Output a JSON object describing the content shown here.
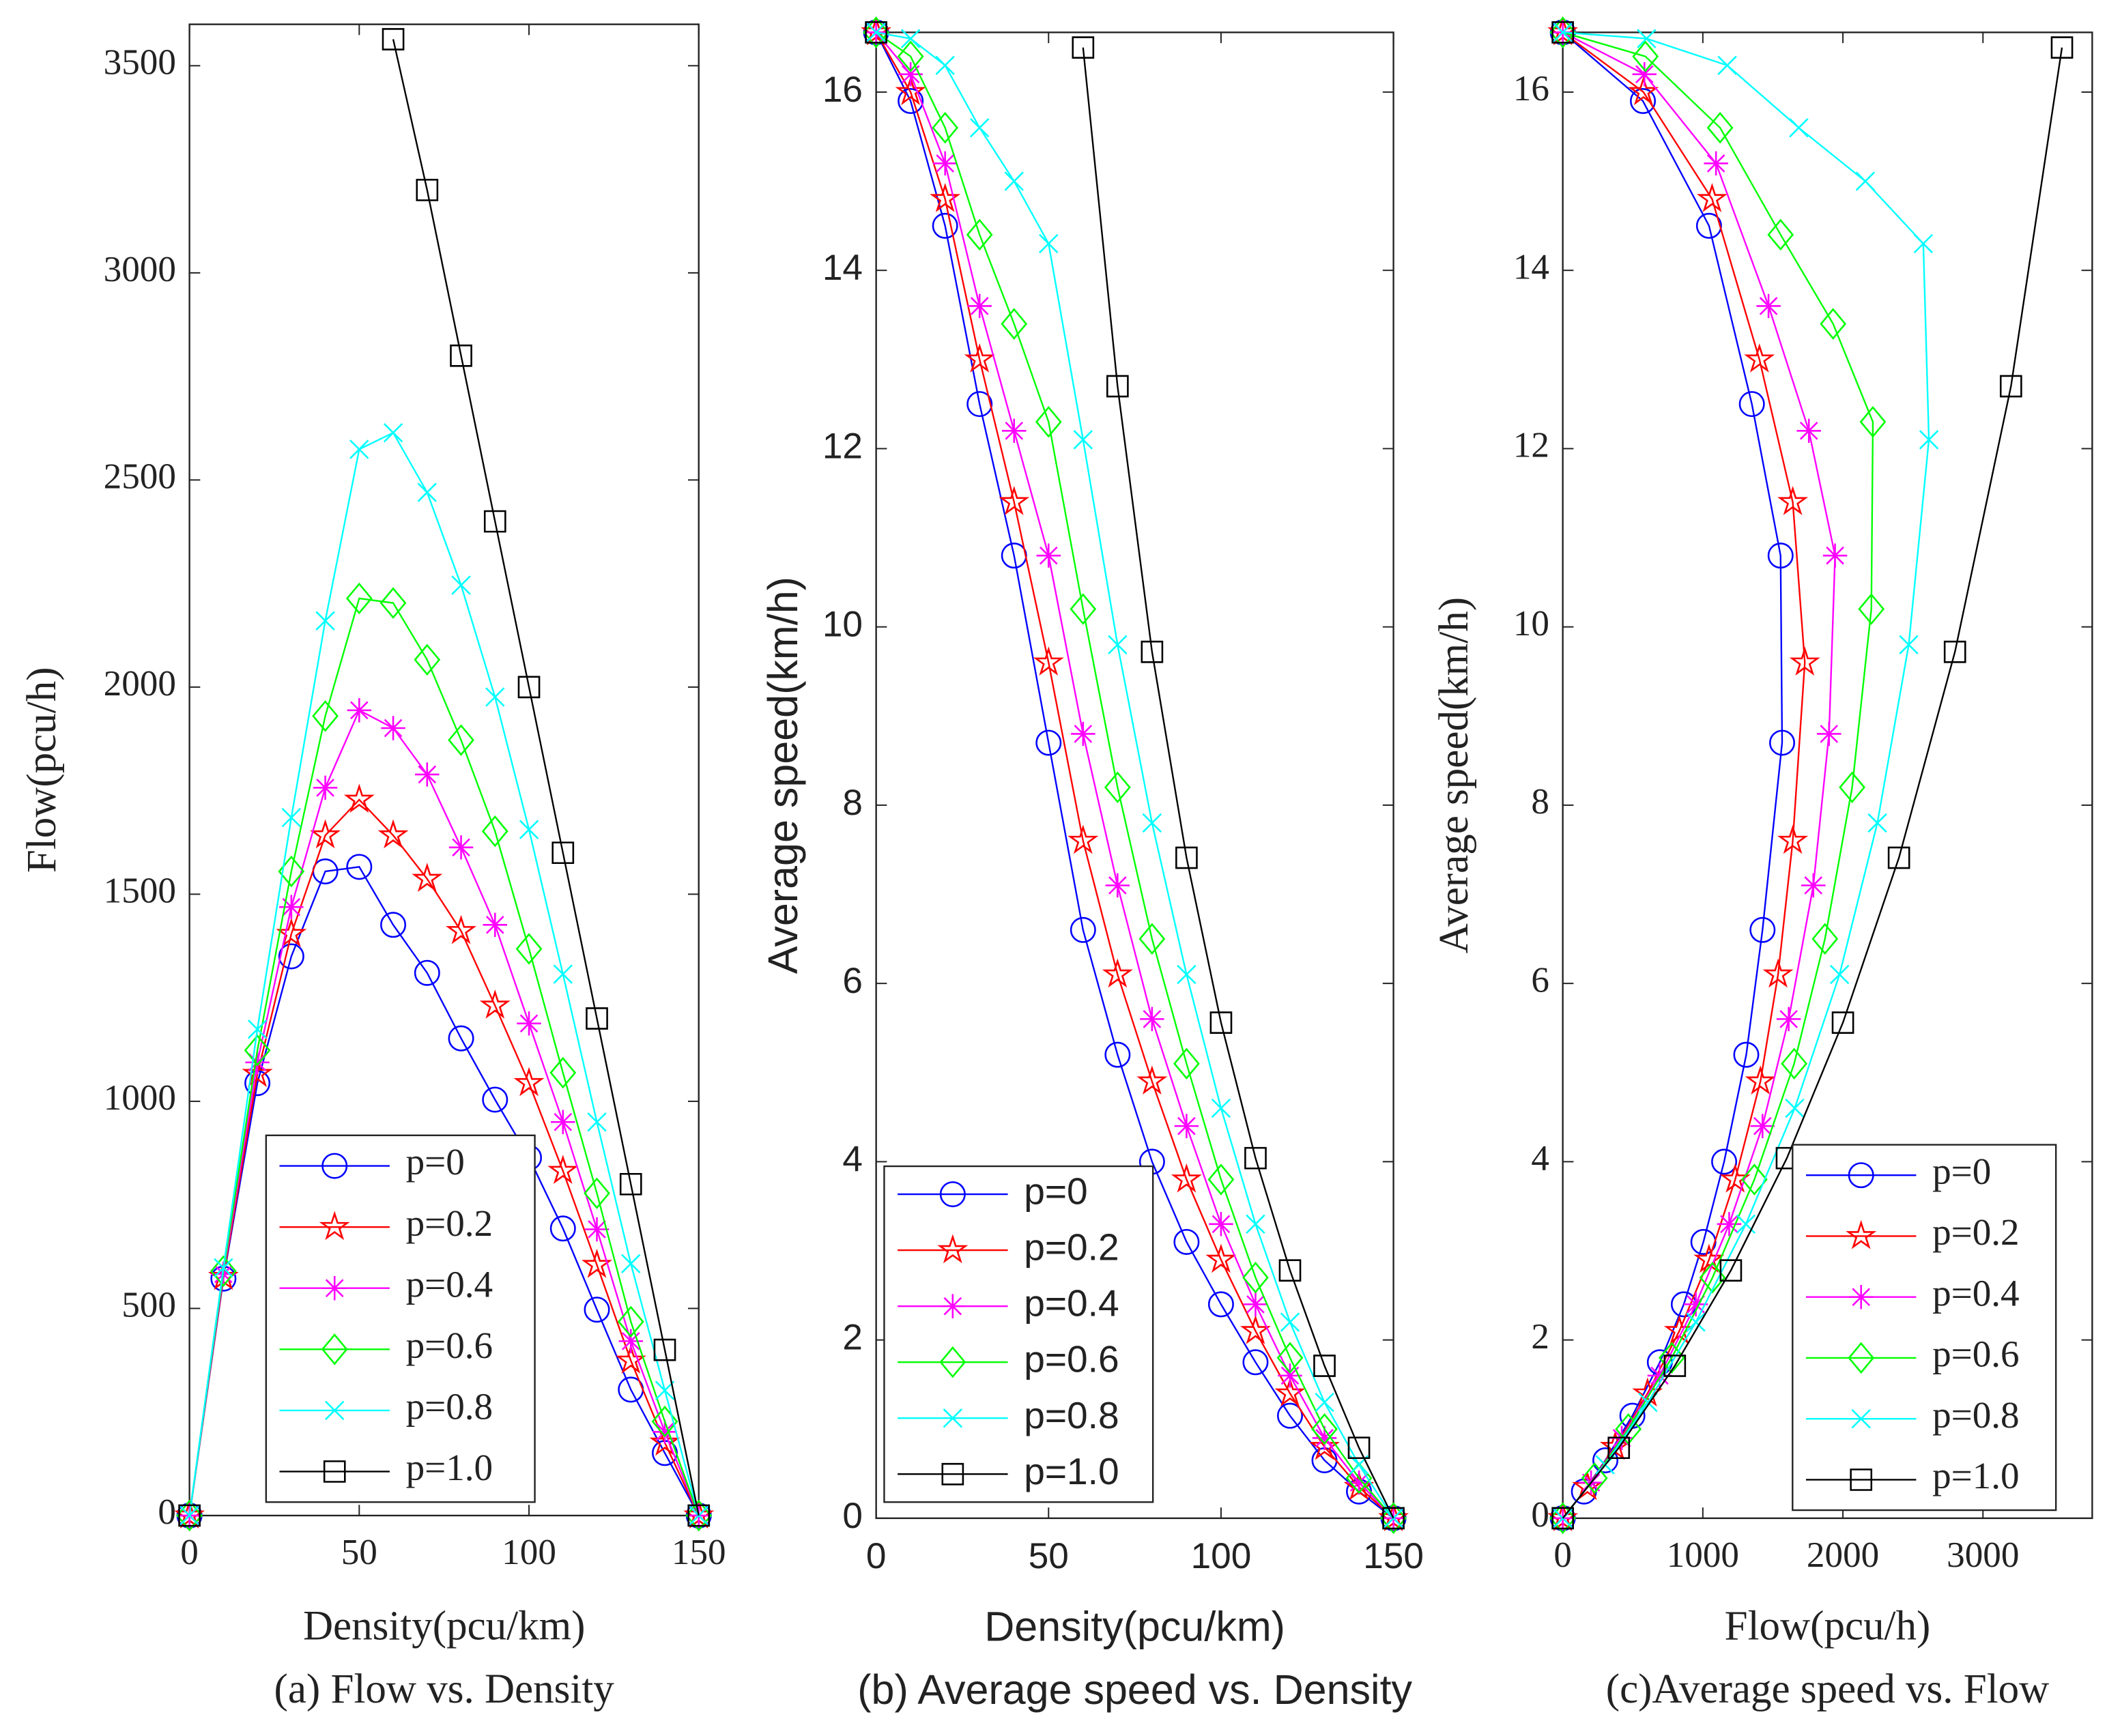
{
  "chart_data": [
    {
      "type": "line",
      "caption": "(a) Flow vs. Density",
      "xlabel": "Density(pcu/km)",
      "ylabel": "Flow(pcu/h)",
      "xlim": [
        0,
        150
      ],
      "xticks": [
        0,
        50,
        100,
        150
      ],
      "ylim": [
        0,
        3600
      ],
      "yticks": [
        0,
        500,
        1000,
        1500,
        2000,
        2500,
        3000,
        3500
      ],
      "legend": "lower right",
      "x": [
        0,
        10,
        20,
        30,
        40,
        50,
        60,
        70,
        80,
        90,
        100,
        110,
        120,
        130,
        140,
        150
      ],
      "series": [
        {
          "name": "p=0",
          "color": "#0000ff",
          "marker": "circle",
          "values": [
            0,
            572,
            1044,
            1350,
            1555,
            1566,
            1426,
            1310,
            1152,
            1004,
            864,
            693,
            497,
            304,
            151,
            0
          ]
        },
        {
          "name": "p=0.2",
          "color": "#ff0000",
          "marker": "star",
          "values": [
            0,
            576,
            1066,
            1404,
            1642,
            1728,
            1642,
            1537,
            1411,
            1231,
            1044,
            832,
            605,
            374,
            176,
            0
          ]
        },
        {
          "name": "p=0.4",
          "color": "#ff00ff",
          "marker": "asterisk",
          "values": [
            0,
            583,
            1094,
            1469,
            1757,
            1944,
            1901,
            1789,
            1613,
            1426,
            1188,
            950,
            691,
            421,
            202,
            0
          ]
        },
        {
          "name": "p=0.6",
          "color": "#00ff00",
          "marker": "diamond",
          "values": [
            0,
            590,
            1123,
            1555,
            1930,
            2214,
            2203,
            2066,
            1872,
            1652,
            1368,
            1069,
            778,
            468,
            227,
            0
          ]
        },
        {
          "name": "p=0.8",
          "color": "#00ffff",
          "marker": "x",
          "values": [
            0,
            598,
            1174,
            1685,
            2160,
            2574,
            2614,
            2470,
            2246,
            1976,
            1656,
            1307,
            950,
            608,
            302,
            0
          ]
        },
        {
          "name": "p=1.0",
          "color": "#000000",
          "marker": "square",
          "values": [
            0,
            null,
            null,
            null,
            null,
            null,
            3564,
            3200,
            2800,
            2400,
            2000,
            1600,
            1200,
            800,
            400,
            0
          ]
        }
      ]
    },
    {
      "type": "line",
      "caption": "(b)  Average speed vs. Density",
      "xlabel": "Density(pcu/km)",
      "ylabel": "Average speed(km/h)",
      "xlim": [
        0,
        150
      ],
      "xticks": [
        0,
        50,
        100,
        150
      ],
      "ylim": [
        0,
        16.67
      ],
      "yticks": [
        0,
        2,
        4,
        6,
        8,
        10,
        12,
        14,
        16
      ],
      "legend": "lower left",
      "x": [
        0,
        10,
        20,
        30,
        40,
        50,
        60,
        70,
        80,
        90,
        100,
        110,
        120,
        130,
        140,
        150
      ],
      "series": [
        {
          "name": "p=0",
          "color": "#0000ff",
          "marker": "circle",
          "values": [
            16.67,
            15.9,
            14.5,
            12.5,
            10.8,
            8.7,
            6.6,
            5.2,
            4.0,
            3.1,
            2.4,
            1.75,
            1.15,
            0.65,
            0.3,
            0
          ]
        },
        {
          "name": "p=0.2",
          "color": "#ff0000",
          "marker": "star",
          "values": [
            16.67,
            16.0,
            14.8,
            13.0,
            11.4,
            9.6,
            7.6,
            6.1,
            4.9,
            3.8,
            2.9,
            2.1,
            1.4,
            0.8,
            0.35,
            0
          ]
        },
        {
          "name": "p=0.4",
          "color": "#ff00ff",
          "marker": "asterisk",
          "values": [
            16.67,
            16.2,
            15.2,
            13.6,
            12.2,
            10.8,
            8.8,
            7.1,
            5.6,
            4.4,
            3.3,
            2.4,
            1.6,
            0.9,
            0.4,
            0
          ]
        },
        {
          "name": "p=0.6",
          "color": "#00ff00",
          "marker": "diamond",
          "values": [
            16.67,
            16.4,
            15.6,
            14.4,
            13.4,
            12.3,
            10.2,
            8.2,
            6.5,
            5.1,
            3.8,
            2.7,
            1.8,
            1.0,
            0.45,
            0
          ]
        },
        {
          "name": "p=0.8",
          "color": "#00ffff",
          "marker": "x",
          "values": [
            16.67,
            16.6,
            16.3,
            15.6,
            15.0,
            14.3,
            12.1,
            9.8,
            7.8,
            6.1,
            4.6,
            3.3,
            2.2,
            1.3,
            0.6,
            0
          ]
        },
        {
          "name": "p=1.0",
          "color": "#000000",
          "marker": "square",
          "values": [
            16.67,
            null,
            null,
            null,
            null,
            null,
            16.5,
            12.7,
            9.72,
            7.41,
            5.56,
            4.04,
            2.78,
            1.71,
            0.79,
            0
          ]
        }
      ]
    },
    {
      "type": "line",
      "caption": "(c)Average speed vs. Flow",
      "xlabel": "Flow(pcu/h)",
      "ylabel": "Average speed(km/h)",
      "xlim": [
        0,
        3780
      ],
      "xticks": [
        0,
        1000,
        2000,
        3000
      ],
      "ylim": [
        0,
        16.67
      ],
      "yticks": [
        0,
        2,
        4,
        6,
        8,
        10,
        12,
        14,
        16
      ],
      "legend": "lower right",
      "series": [
        {
          "name": "p=0",
          "color": "#0000ff",
          "marker": "circle",
          "x": [
            0,
            572,
            1044,
            1350,
            1555,
            1566,
            1426,
            1310,
            1152,
            1004,
            864,
            693,
            497,
            304,
            151,
            0
          ],
          "values": [
            16.67,
            15.9,
            14.5,
            12.5,
            10.8,
            8.7,
            6.6,
            5.2,
            4.0,
            3.1,
            2.4,
            1.75,
            1.15,
            0.65,
            0.3,
            0
          ]
        },
        {
          "name": "p=0.2",
          "color": "#ff0000",
          "marker": "star",
          "x": [
            0,
            576,
            1066,
            1404,
            1642,
            1728,
            1642,
            1537,
            1411,
            1231,
            1044,
            832,
            605,
            374,
            176,
            0
          ],
          "values": [
            16.67,
            16.0,
            14.8,
            13.0,
            11.4,
            9.6,
            7.6,
            6.1,
            4.9,
            3.8,
            2.9,
            2.1,
            1.4,
            0.8,
            0.35,
            0
          ]
        },
        {
          "name": "p=0.4",
          "color": "#ff00ff",
          "marker": "asterisk",
          "x": [
            0,
            583,
            1094,
            1469,
            1757,
            1944,
            1901,
            1789,
            1613,
            1426,
            1188,
            950,
            691,
            421,
            202,
            0
          ],
          "values": [
            16.67,
            16.2,
            15.2,
            13.6,
            12.2,
            10.8,
            8.8,
            7.1,
            5.6,
            4.4,
            3.3,
            2.4,
            1.6,
            0.9,
            0.4,
            0
          ]
        },
        {
          "name": "p=0.6",
          "color": "#00ff00",
          "marker": "diamond",
          "x": [
            0,
            590,
            1123,
            1555,
            1930,
            2214,
            2203,
            2066,
            1872,
            1652,
            1368,
            1069,
            778,
            468,
            227,
            0
          ],
          "values": [
            16.67,
            16.4,
            15.6,
            14.4,
            13.4,
            12.3,
            10.2,
            8.2,
            6.5,
            5.1,
            3.8,
            2.7,
            1.8,
            1.0,
            0.45,
            0
          ]
        },
        {
          "name": "p=0.8",
          "color": "#00ffff",
          "marker": "x",
          "x": [
            0,
            598,
            1174,
            1685,
            2160,
            2574,
            2614,
            2470,
            2246,
            1976,
            1656,
            1307,
            950,
            608,
            302,
            0
          ],
          "values": [
            16.67,
            16.6,
            16.3,
            15.6,
            15.0,
            14.3,
            12.1,
            9.8,
            7.8,
            6.1,
            4.6,
            3.3,
            2.2,
            1.3,
            0.6,
            0
          ]
        },
        {
          "name": "p=1.0",
          "color": "#000000",
          "marker": "square",
          "x": [
            0,
            null,
            null,
            null,
            null,
            null,
            3564,
            3200,
            2800,
            2400,
            2000,
            1600,
            1200,
            800,
            400,
            0
          ],
          "values": [
            16.67,
            null,
            null,
            null,
            null,
            null,
            16.5,
            12.7,
            9.72,
            7.41,
            5.56,
            4.04,
            2.78,
            1.71,
            0.79,
            0
          ]
        }
      ]
    }
  ]
}
